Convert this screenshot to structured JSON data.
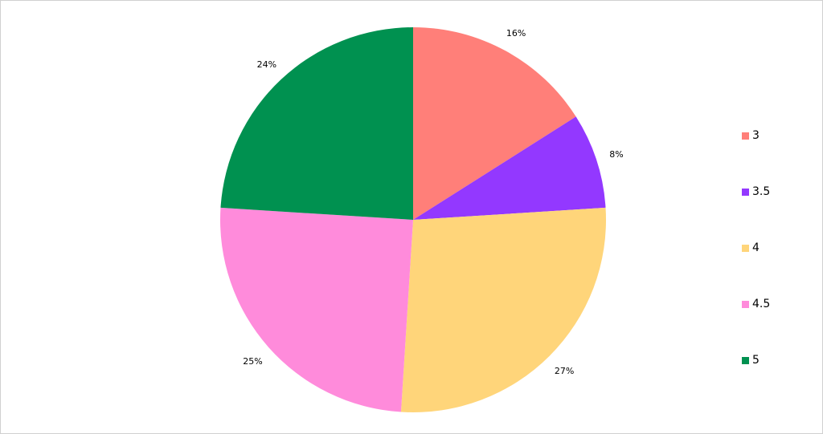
{
  "chart_data": {
    "type": "pie",
    "start_angle": "top",
    "direction": "clockwise",
    "legend_position": "right",
    "categories": [
      "3",
      "3.5",
      "4",
      "4.5",
      "5"
    ],
    "values": [
      16,
      8,
      27,
      25,
      24
    ],
    "data_labels": [
      "16%",
      "8%",
      "27%",
      "25%",
      "24%"
    ],
    "colors": [
      "#FF7F79",
      "#9338FF",
      "#FFD57A",
      "#FF8BDB",
      "#009150"
    ]
  }
}
